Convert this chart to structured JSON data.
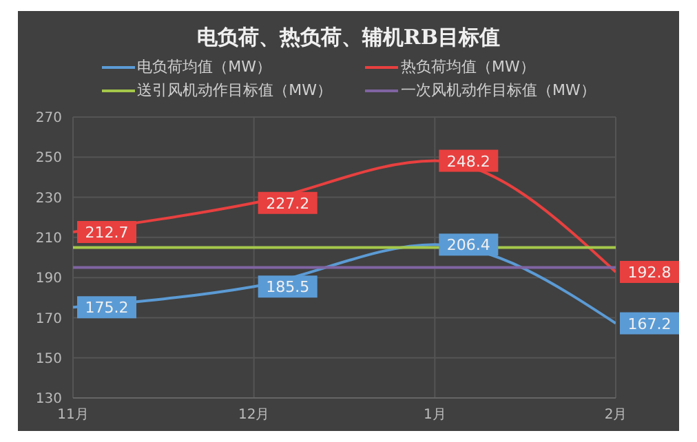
{
  "chart_data": {
    "type": "line",
    "title": "电负荷、热负荷、辅机RB目标值",
    "categories": [
      "11月",
      "12月",
      "1月",
      "2月"
    ],
    "series": [
      {
        "name": "电负荷均值（MW）",
        "color": "#5b9bd5",
        "values": [
          175.2,
          185.5,
          206.4,
          167.2
        ],
        "value_labels": [
          "175.2",
          "185.5",
          "206.4",
          "167.2"
        ]
      },
      {
        "name": "热负荷均值（MW）",
        "color": "#e8403f",
        "values": [
          212.7,
          227.2,
          248.2,
          192.8
        ],
        "value_labels": [
          "212.7",
          "227.2",
          "248.2",
          "192.8"
        ]
      },
      {
        "name": "送引风机动作目标值（MW）",
        "color": "#a5c84a",
        "values": [
          205,
          205,
          205,
          205
        ]
      },
      {
        "name": "一次风机动作目标值（MW）",
        "color": "#8064a2",
        "values": [
          195,
          195,
          195,
          195
        ]
      }
    ],
    "ylim": [
      130,
      270
    ],
    "yticks": [
      130,
      150,
      170,
      190,
      210,
      230,
      250,
      270
    ],
    "grid": true,
    "legend": "top",
    "marker": "none",
    "line_style": "solid"
  }
}
